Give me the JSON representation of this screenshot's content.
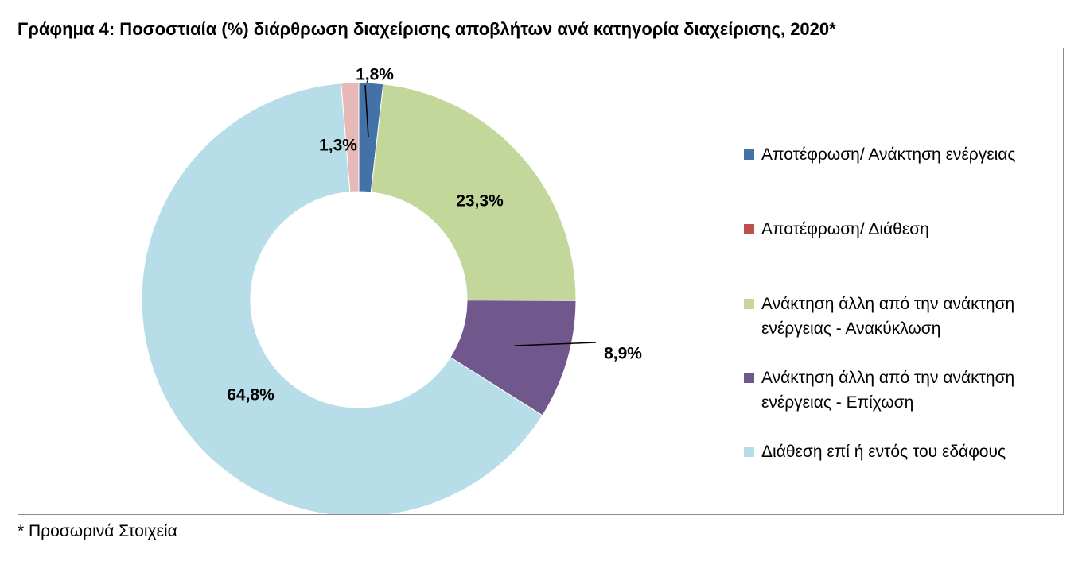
{
  "title": "Γράφημα 4: Ποσοστιαία (%) διάρθρωση διαχείρισης αποβλήτων ανά κατηγορία διαχείρισης, 2020*",
  "footnote": "* Προσωρινά Στοιχεία",
  "chart_data": {
    "type": "pie",
    "donut": true,
    "title": "Γράφημα 4: Ποσοστιαία (%) διάρθρωση διαχείρισης αποβλήτων ανά κατηγορία διαχείρισης, 2020*",
    "legend_position": "right",
    "series": [
      {
        "name": "Αποτέφρωση/ Ανάκτηση ενέργειας",
        "value": 1.8,
        "label": "1,8%",
        "color": "#4472a8"
      },
      {
        "name": "Αποτέφρωση/ Διάθεση",
        "value": 0.0,
        "label": "",
        "color": "#c0504d"
      },
      {
        "name": "Ανάκτηση άλλη από την ανάκτηση ενέργειας - Ανακύκλωση",
        "value": 23.3,
        "label": "23,3%",
        "color": "#c4d79b"
      },
      {
        "name": "Ανάκτηση άλλη από την ανάκτηση ενέργειας -  Επίχωση",
        "value": 8.9,
        "label": "8,9%",
        "color": "#70588d"
      },
      {
        "name": "Διάθεση επί ή εντός του εδάφους",
        "value": 64.8,
        "label": "64,8%",
        "color": "#b7dde8"
      },
      {
        "name": "",
        "value": 1.3,
        "label": "1,3%",
        "color": "#e6b9b8"
      }
    ]
  }
}
